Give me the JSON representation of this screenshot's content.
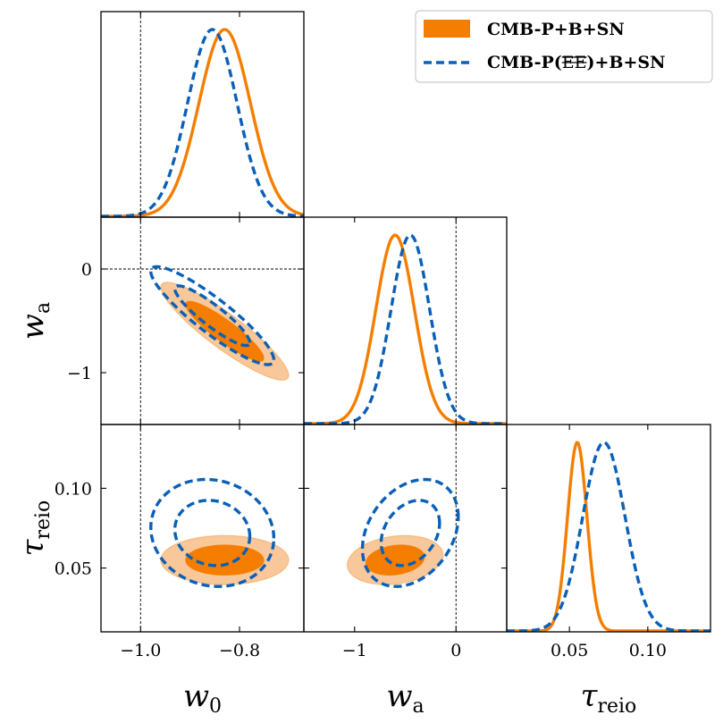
{
  "chart_data": {
    "type": "triangle-plot",
    "parameters": [
      {
        "key": "w0",
        "symbol": "w",
        "subscript": "0",
        "range": [
          -1.08,
          -0.67
        ],
        "ticks": [
          -1.0,
          -0.8
        ],
        "tick_labels": [
          "−1.0",
          "−0.8"
        ],
        "reference_line": -1.0
      },
      {
        "key": "wa",
        "symbol": "w",
        "subscript": "a",
        "range": [
          -1.5,
          0.5
        ],
        "ticks": [
          -1,
          0
        ],
        "tick_labels": [
          "−1",
          "0"
        ],
        "reference_line": 0
      },
      {
        "key": "tau",
        "symbol": "τ",
        "subscript": "reio",
        "range": [
          0.01,
          0.14
        ],
        "ticks": [
          0.05,
          0.1
        ],
        "tick_labels": [
          "0.05",
          "0.10"
        ]
      }
    ],
    "series": [
      {
        "name": "CMB-P+B+SN",
        "style": "filled",
        "color": "#f57e00",
        "color_light": "#f8c79a",
        "mean": {
          "w0": -0.83,
          "wa": -0.6,
          "tau": 0.055
        },
        "sigma": {
          "w0": 0.052,
          "wa": 0.19,
          "tau": 0.0062
        },
        "corr": {
          "w0_wa": -0.9,
          "w0_tau": 0.0,
          "wa_tau": 0.2
        }
      },
      {
        "name": "CMB-P(EE)+B+SN",
        "name_prefix": "CMB-P(",
        "name_struck": "EE",
        "name_suffix": ")+B+SN",
        "style": "dashed",
        "color": "#0a60b8",
        "mean": {
          "w0": -0.855,
          "wa": -0.45,
          "tau": 0.072
        },
        "sigma": {
          "w0": 0.05,
          "wa": 0.19,
          "tau": 0.0135
        },
        "corr": {
          "w0_wa": -0.9,
          "w0_tau": -0.1,
          "wa_tau": 0.3
        }
      }
    ],
    "legend_position": "top-right"
  }
}
